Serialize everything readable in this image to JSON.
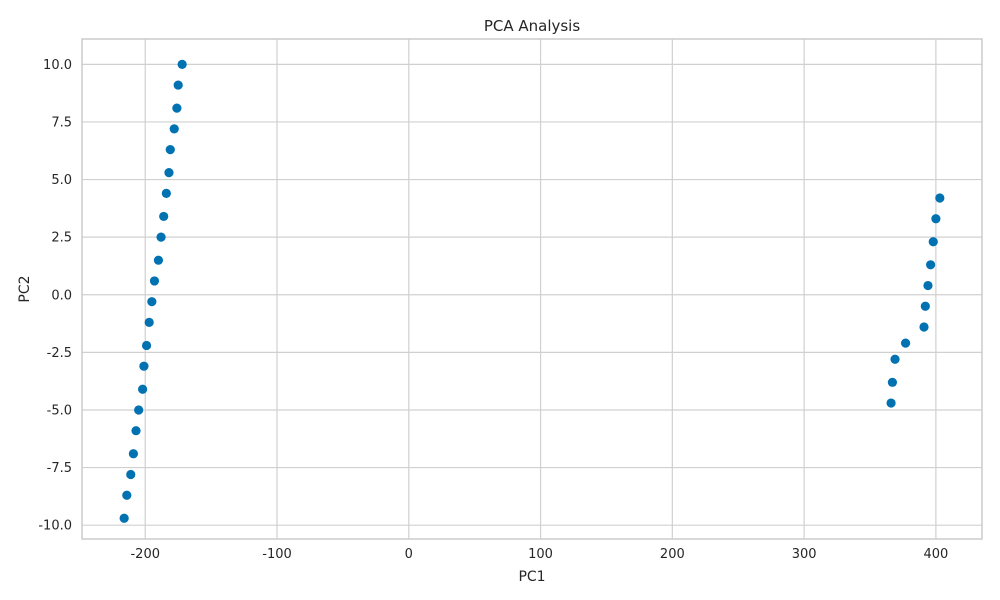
{
  "chart_data": {
    "type": "scatter",
    "title": "PCA Analysis",
    "xlabel": "PC1",
    "ylabel": "PC2",
    "xlim": [
      -248,
      435
    ],
    "ylim": [
      -10.6,
      11.1
    ],
    "xticks": [
      -200,
      -100,
      0,
      100,
      200,
      300,
      400
    ],
    "xtick_labels": [
      "-200",
      "-100",
      "0",
      "100",
      "200",
      "300",
      "400"
    ],
    "yticks": [
      -10,
      -7.5,
      -5,
      -2.5,
      0,
      2.5,
      5,
      7.5,
      10
    ],
    "ytick_labels": [
      "-10.0",
      "-7.5",
      "-5.0",
      "-2.5",
      "0.0",
      "2.5",
      "5.0",
      "7.5",
      "10.0"
    ],
    "grid": true,
    "marker_color": "#0072b2",
    "series": [
      {
        "x": [
          -216,
          -214,
          -211,
          -209,
          -207,
          -205,
          -202,
          -201,
          -199,
          -197,
          -195,
          -193,
          -190,
          -188,
          -186,
          -184,
          -182,
          -181,
          -178,
          -176,
          -175,
          -172
        ],
        "y": [
          -9.7,
          -8.7,
          -7.8,
          -6.9,
          -5.9,
          -5.0,
          -4.1,
          -3.1,
          -2.2,
          -1.2,
          -0.3,
          0.6,
          1.5,
          2.5,
          3.4,
          4.4,
          5.3,
          6.3,
          7.2,
          8.1,
          9.1,
          10.0
        ]
      },
      {
        "x": [
          366,
          367,
          369,
          377,
          391,
          392,
          394,
          396,
          398,
          400,
          403
        ],
        "y": [
          -4.7,
          -3.8,
          -2.8,
          -2.1,
          -1.4,
          -0.5,
          0.4,
          1.3,
          2.3,
          3.3,
          4.2
        ]
      }
    ]
  }
}
